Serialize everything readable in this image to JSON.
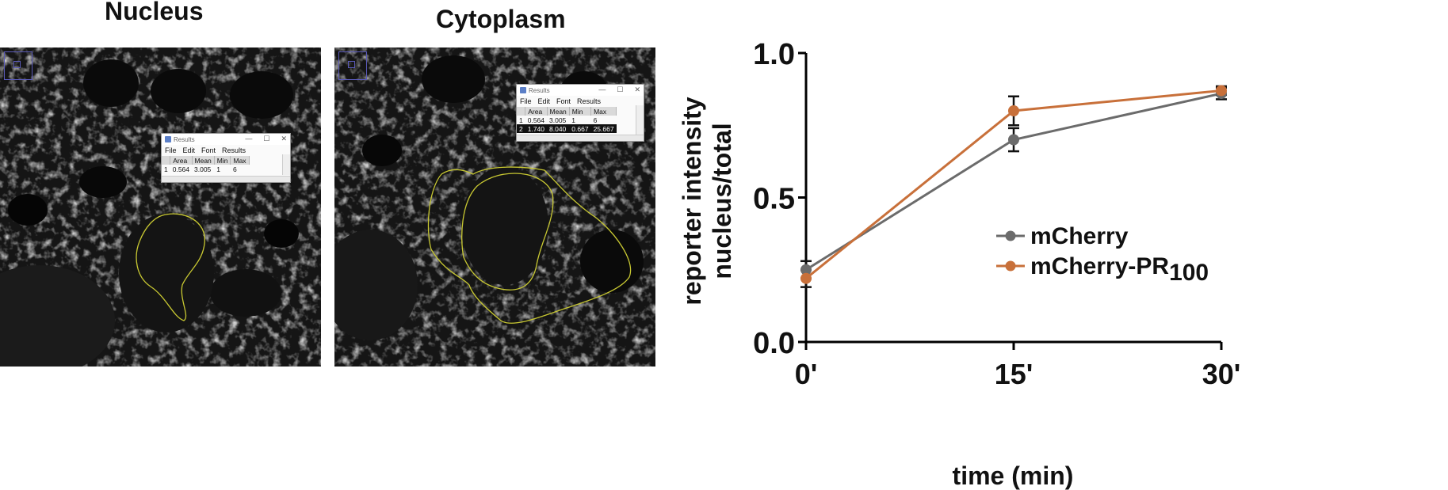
{
  "panels": {
    "nucleus_title": "Nucleus",
    "cytoplasm_title": "Cytoplasm"
  },
  "results_window_1": {
    "title": "Results",
    "controls": [
      "—",
      "☐",
      "✕"
    ],
    "menu": [
      "File",
      "Edit",
      "Font",
      "Results"
    ],
    "headers": [
      "",
      "Area",
      "Mean",
      "Min",
      "Max"
    ],
    "rows": [
      [
        "1",
        "0.564",
        "3.005",
        "1",
        "6"
      ]
    ]
  },
  "results_window_2": {
    "title": "Results",
    "controls": [
      "—",
      "☐",
      "✕"
    ],
    "menu": [
      "File",
      "Edit",
      "Font",
      "Results"
    ],
    "headers": [
      "",
      "Area",
      "Mean",
      "Min",
      "Max"
    ],
    "rows": [
      [
        "1",
        "0.564",
        "3.005",
        "1",
        "6"
      ],
      [
        "2",
        "1.740",
        "8.040",
        "0.667",
        "25.667"
      ]
    ]
  },
  "colors": {
    "mcherry": "#6b6b6b",
    "mcherry_pr100": "#c8703a",
    "roi_outline": "#c8c832",
    "roi_box": "#5a5ab8"
  },
  "chart_data": {
    "type": "line",
    "xlabel": "time (min)",
    "ylabel_line1": "reporter intensity",
    "ylabel_line2": "nucleus/total",
    "x": [
      0,
      15,
      30
    ],
    "x_tick_labels": [
      "0'",
      "15'",
      "30'"
    ],
    "y_ticks": [
      0.0,
      0.5,
      1.0
    ],
    "y_tick_labels": [
      "0.0",
      "0.5",
      "1.0"
    ],
    "ylim": [
      0,
      1.0
    ],
    "xlim": [
      0,
      30
    ],
    "legend_position": "center-right",
    "series": [
      {
        "name": "mCherry",
        "legend_main": "mCherry",
        "legend_sub": "",
        "values": [
          0.25,
          0.7,
          0.86
        ],
        "errors": [
          0.03,
          0.04,
          0.02
        ],
        "color": "#6b6b6b"
      },
      {
        "name": "mCherry-PR100",
        "legend_main": "mCherry-PR",
        "legend_sub": "100",
        "values": [
          0.22,
          0.8,
          0.87
        ],
        "errors": [
          0.03,
          0.05,
          0.015
        ],
        "color": "#c8703a"
      }
    ]
  }
}
